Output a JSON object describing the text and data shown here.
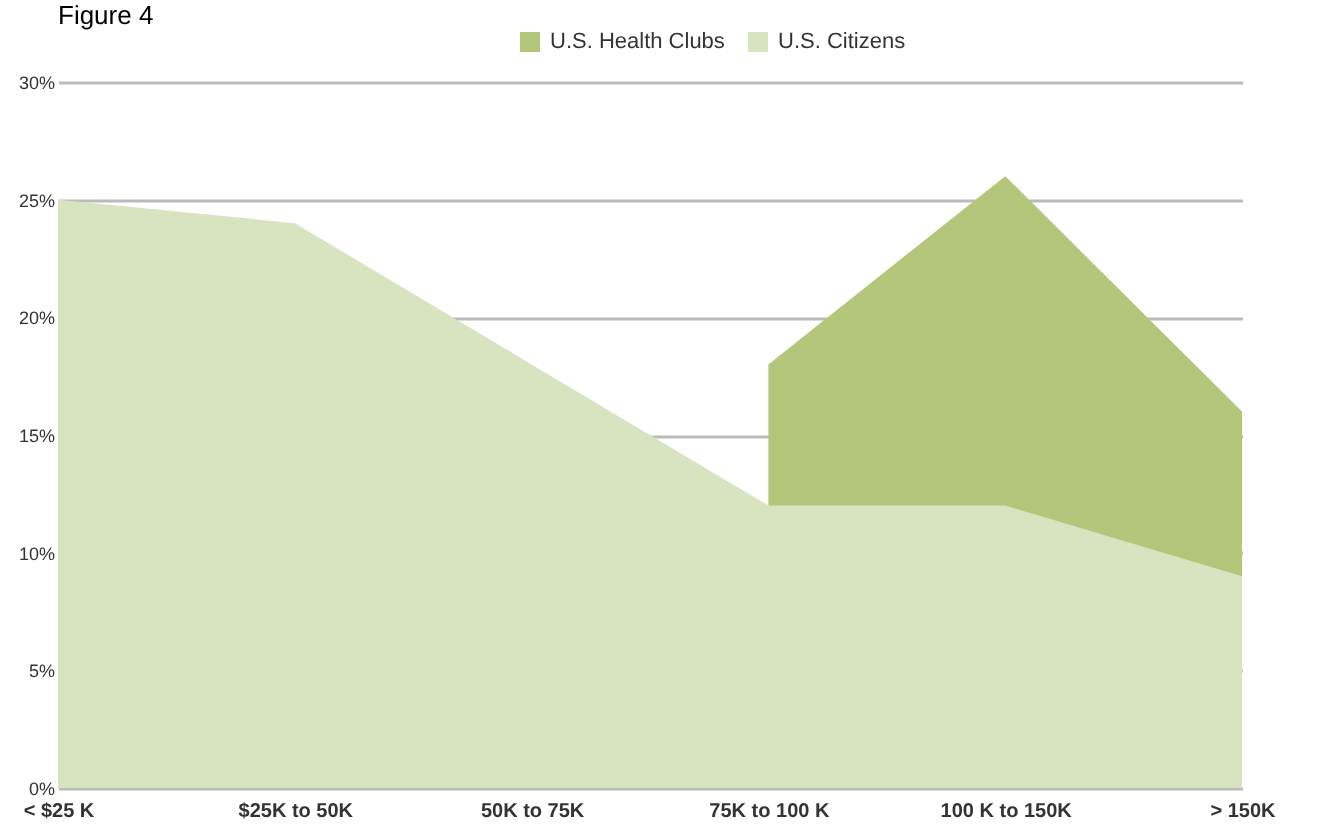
{
  "chart_data": {
    "type": "area",
    "title": "Figure 4",
    "categories": [
      "< $25 K",
      "$25K to 50K",
      "50K to 75K",
      "75K to 100 K",
      "100 K to 150K",
      "> 150K"
    ],
    "series": [
      {
        "name": "U.S. Health Clubs",
        "color": "#b3c67a",
        "values": [
          null,
          null,
          null,
          18,
          26,
          16
        ]
      },
      {
        "name": "U.S. Citizens",
        "color": "#d8e4c0",
        "values": [
          25,
          24,
          18,
          12,
          12,
          9
        ]
      }
    ],
    "ylim": [
      0,
      30
    ],
    "yticks": [
      {
        "value": 0,
        "label": "0%"
      },
      {
        "value": 5,
        "label": "5%"
      },
      {
        "value": 10,
        "label": "10%"
      },
      {
        "value": 15,
        "label": "15%"
      },
      {
        "value": 20,
        "label": "20%"
      },
      {
        "value": 25,
        "label": "25%"
      },
      {
        "value": 30,
        "label": "30%"
      }
    ],
    "grid": "y",
    "legend": "top"
  }
}
